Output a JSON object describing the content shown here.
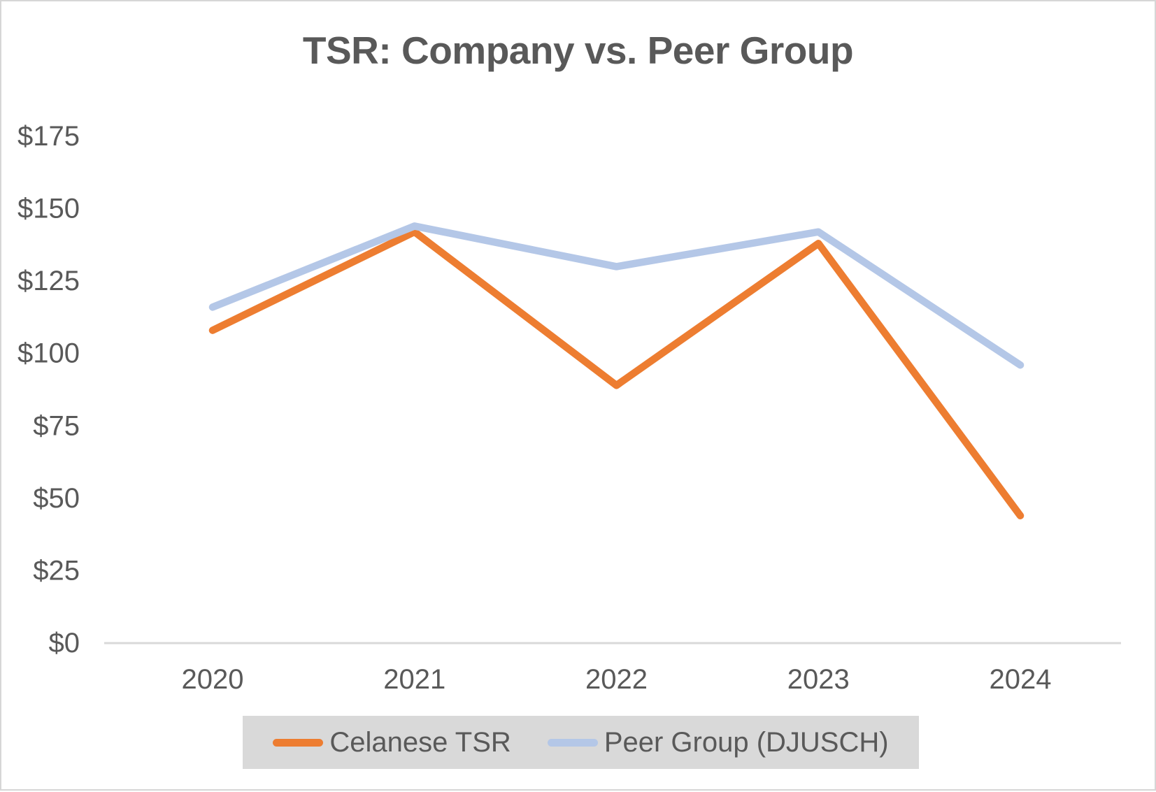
{
  "title": "TSR: Company vs. Peer Group",
  "colors": {
    "series_orange": "#ED7D31",
    "series_light_blue": "#B4C7E7",
    "text_gray": "#595959",
    "axis_line": "#D9D9D9",
    "legend_background": "#D9D9D9",
    "page_border": "#D6D6D6"
  },
  "chart_data": {
    "type": "line",
    "title": "TSR: Company vs. Peer Group",
    "x": [
      "2020",
      "2021",
      "2022",
      "2023",
      "2024"
    ],
    "series": [
      {
        "name": "Celanese TSR",
        "color": "#ED7D31",
        "values": [
          108,
          142,
          89,
          138,
          44
        ]
      },
      {
        "name": "Peer Group (DJUSCH)",
        "color": "#B4C7E7",
        "values": [
          116,
          144,
          130,
          142,
          96
        ]
      }
    ],
    "xlabel": "",
    "ylabel": "",
    "ylim": [
      0,
      175
    ],
    "ytick_step": 25,
    "ytick_labels": [
      "$0",
      "$25",
      "$50",
      "$75",
      "$100",
      "$125",
      "$150",
      "$175"
    ],
    "grid": false,
    "legend_position": "bottom"
  }
}
